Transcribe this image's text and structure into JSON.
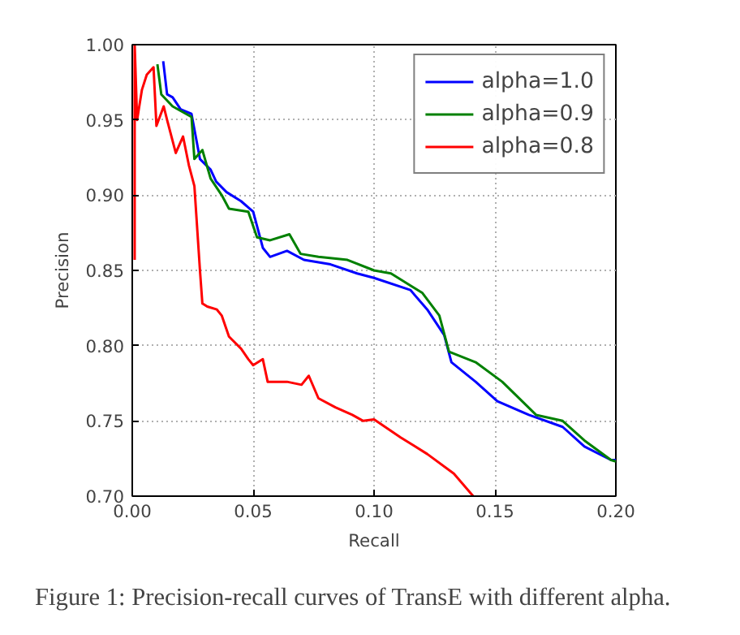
{
  "chart_data": {
    "type": "line",
    "xlabel": "Recall",
    "ylabel": "Precision",
    "xlim": [
      0,
      0.2
    ],
    "ylim": [
      0.7,
      1.0
    ],
    "xticks": [
      {
        "value": 0,
        "label": "0.00"
      },
      {
        "value": 0.05,
        "label": "0.05"
      },
      {
        "value": 0.1,
        "label": "0.10"
      },
      {
        "value": 0.15,
        "label": "0.15"
      },
      {
        "value": 0.2,
        "label": "0.20"
      }
    ],
    "yticks": [
      {
        "value": 0.7,
        "label": "0.70"
      },
      {
        "value": 0.75,
        "label": "0.75"
      },
      {
        "value": 0.8,
        "label": "0.80"
      },
      {
        "value": 0.85,
        "label": "0.85"
      },
      {
        "value": 0.9,
        "label": "0.90"
      },
      {
        "value": 0.95,
        "label": "0.95"
      },
      {
        "value": 1.0,
        "label": "1.00"
      }
    ],
    "grid": true,
    "legend": "top right",
    "line_style": "solid",
    "annotations": [
      "Figure 1: Precision-recall curves of TransE with different alpha."
    ],
    "series": [
      {
        "name": "alpha=1.0",
        "color": "#0000ff",
        "x": [
          0.0128,
          0.0144,
          0.0167,
          0.02,
          0.0245,
          0.028,
          0.0324,
          0.0347,
          0.039,
          0.045,
          0.05,
          0.054,
          0.057,
          0.064,
          0.071,
          0.082,
          0.093,
          0.1,
          0.115,
          0.122,
          0.129,
          0.132,
          0.142,
          0.151,
          0.164,
          0.178,
          0.187,
          0.198,
          0.2
        ],
        "values": [
          0.989,
          0.967,
          0.965,
          0.957,
          0.954,
          0.924,
          0.917,
          0.909,
          0.902,
          0.896,
          0.889,
          0.865,
          0.859,
          0.863,
          0.857,
          0.854,
          0.848,
          0.845,
          0.837,
          0.824,
          0.807,
          0.789,
          0.776,
          0.763,
          0.754,
          0.746,
          0.733,
          0.724,
          0.724
        ]
      },
      {
        "name": "alpha=0.9",
        "color": "#008000",
        "x": [
          0.0104,
          0.012,
          0.0167,
          0.0245,
          0.0257,
          0.029,
          0.0324,
          0.037,
          0.04,
          0.048,
          0.0516,
          0.057,
          0.065,
          0.0696,
          0.077,
          0.089,
          0.1,
          0.107,
          0.12,
          0.127,
          0.131,
          0.142,
          0.153,
          0.167,
          0.178,
          0.187,
          0.198,
          0.2
        ],
        "values": [
          0.987,
          0.967,
          0.959,
          0.952,
          0.924,
          0.93,
          0.911,
          0.9,
          0.891,
          0.889,
          0.872,
          0.87,
          0.874,
          0.861,
          0.859,
          0.857,
          0.85,
          0.848,
          0.835,
          0.82,
          0.796,
          0.789,
          0.776,
          0.754,
          0.75,
          0.737,
          0.724,
          0.723
        ]
      },
      {
        "name": "alpha=0.8",
        "color": "#ff0000",
        "x": [
          0.001,
          0.001,
          0.002,
          0.004,
          0.006,
          0.0088,
          0.01,
          0.013,
          0.0144,
          0.018,
          0.021,
          0.0234,
          0.0257,
          0.028,
          0.029,
          0.031,
          0.035,
          0.037,
          0.04,
          0.045,
          0.048,
          0.05,
          0.054,
          0.056,
          0.064,
          0.07,
          0.073,
          0.077,
          0.084,
          0.091,
          0.0955,
          0.1,
          0.111,
          0.122,
          0.133,
          0.141
        ],
        "values": [
          0.857,
          1.0,
          0.95,
          0.97,
          0.98,
          0.985,
          0.946,
          0.959,
          0.95,
          0.928,
          0.939,
          0.92,
          0.906,
          0.85,
          0.828,
          0.826,
          0.824,
          0.82,
          0.806,
          0.798,
          0.791,
          0.787,
          0.791,
          0.776,
          0.776,
          0.774,
          0.78,
          0.765,
          0.759,
          0.754,
          0.75,
          0.751,
          0.739,
          0.728,
          0.715,
          0.7
        ]
      }
    ]
  }
}
